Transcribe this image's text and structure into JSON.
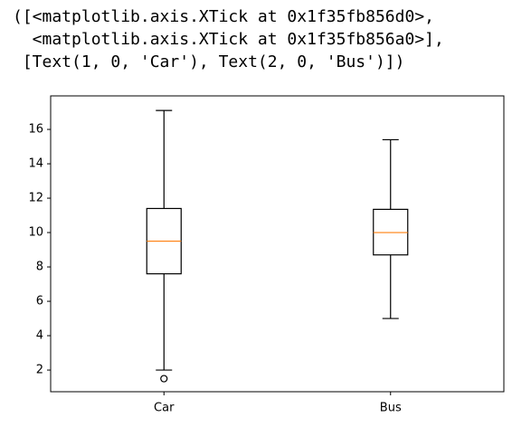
{
  "output_text": [
    "([<matplotlib.axis.XTick at 0x1f35fb856d0>,",
    "  <matplotlib.axis.XTick at 0x1f35fb856a0>],",
    " [Text(1, 0, 'Car'), Text(2, 0, 'Bus')])"
  ],
  "chart_data": {
    "type": "box",
    "categories": [
      "Car",
      "Bus"
    ],
    "boxes": [
      {
        "whislo": 2.0,
        "q1": 7.6,
        "med": 9.5,
        "q3": 11.4,
        "whishi": 17.1,
        "fliers": [
          1.5
        ]
      },
      {
        "whislo": 5.0,
        "q1": 8.7,
        "med": 10.0,
        "q3": 11.35,
        "whishi": 15.4,
        "fliers": []
      }
    ],
    "color": "#000000",
    "median_color": "#ff7f0e",
    "xlim": [
      0.5,
      2.5
    ],
    "ylim": [
      0.74,
      17.95
    ],
    "yticks": [
      2,
      4,
      6,
      8,
      10,
      12,
      14,
      16
    ]
  }
}
